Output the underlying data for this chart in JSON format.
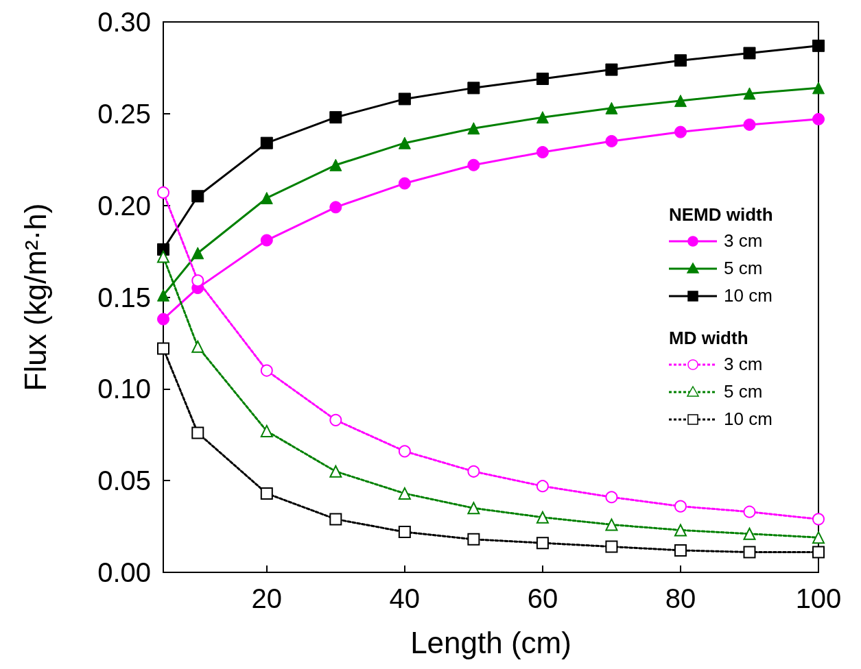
{
  "chart_data": {
    "type": "line",
    "xlabel": "Length (cm)",
    "ylabel": "Flux (kg/m²·h)",
    "legend_title": [
      "NEMD width",
      "MD width"
    ],
    "legend": "right",
    "xlim": [
      5,
      100
    ],
    "xticks": [
      20,
      40,
      60,
      80,
      100
    ],
    "ylim": [
      0,
      0.3
    ],
    "yticks": [
      {
        "value": 0,
        "label": "0.00"
      },
      {
        "value": 0.05,
        "label": "0.05"
      },
      {
        "value": 0.1,
        "label": "0.10"
      },
      {
        "value": 0.15,
        "label": "0.15"
      },
      {
        "value": 0.2,
        "label": "0.20"
      },
      {
        "value": 0.25,
        "label": "0.25"
      },
      {
        "value": 0.3,
        "label": "0.30"
      }
    ],
    "x": [
      5,
      10,
      20,
      30,
      40,
      50,
      60,
      70,
      80,
      90,
      100
    ],
    "series": [
      {
        "name": "3 cm",
        "color": "#ff00ff",
        "marker": "circle",
        "line_style": "solid",
        "values": [
          0.138,
          0.155,
          0.181,
          0.199,
          0.212,
          0.222,
          0.229,
          0.235,
          0.24,
          0.244,
          0.247
        ]
      },
      {
        "name": "5 cm",
        "color": "#008000",
        "marker": "triangle",
        "line_style": "solid",
        "values": [
          0.151,
          0.174,
          0.204,
          0.222,
          0.234,
          0.242,
          0.248,
          0.253,
          0.257,
          0.261,
          0.264
        ]
      },
      {
        "name": "10 cm",
        "color": "#000000",
        "marker": "square",
        "line_style": "solid",
        "values": [
          0.176,
          0.205,
          0.234,
          0.248,
          0.258,
          0.264,
          0.269,
          0.274,
          0.279,
          0.283,
          0.287
        ]
      },
      {
        "name": "3 cm",
        "color": "#ff00ff",
        "marker": "circle",
        "line_style": "dashed",
        "values": [
          0.207,
          0.159,
          0.11,
          0.083,
          0.066,
          0.055,
          0.047,
          0.041,
          0.036,
          0.033,
          0.029
        ]
      },
      {
        "name": "5 cm",
        "color": "#008000",
        "marker": "triangle",
        "line_style": "dashed",
        "values": [
          0.172,
          0.123,
          0.077,
          0.055,
          0.043,
          0.035,
          0.03,
          0.026,
          0.023,
          0.021,
          0.019
        ]
      },
      {
        "name": "10 cm",
        "color": "#000000",
        "marker": "square",
        "line_style": "dashed",
        "values": [
          0.122,
          0.076,
          0.043,
          0.029,
          0.022,
          0.018,
          0.016,
          0.014,
          0.012,
          0.011,
          0.011
        ]
      }
    ]
  }
}
